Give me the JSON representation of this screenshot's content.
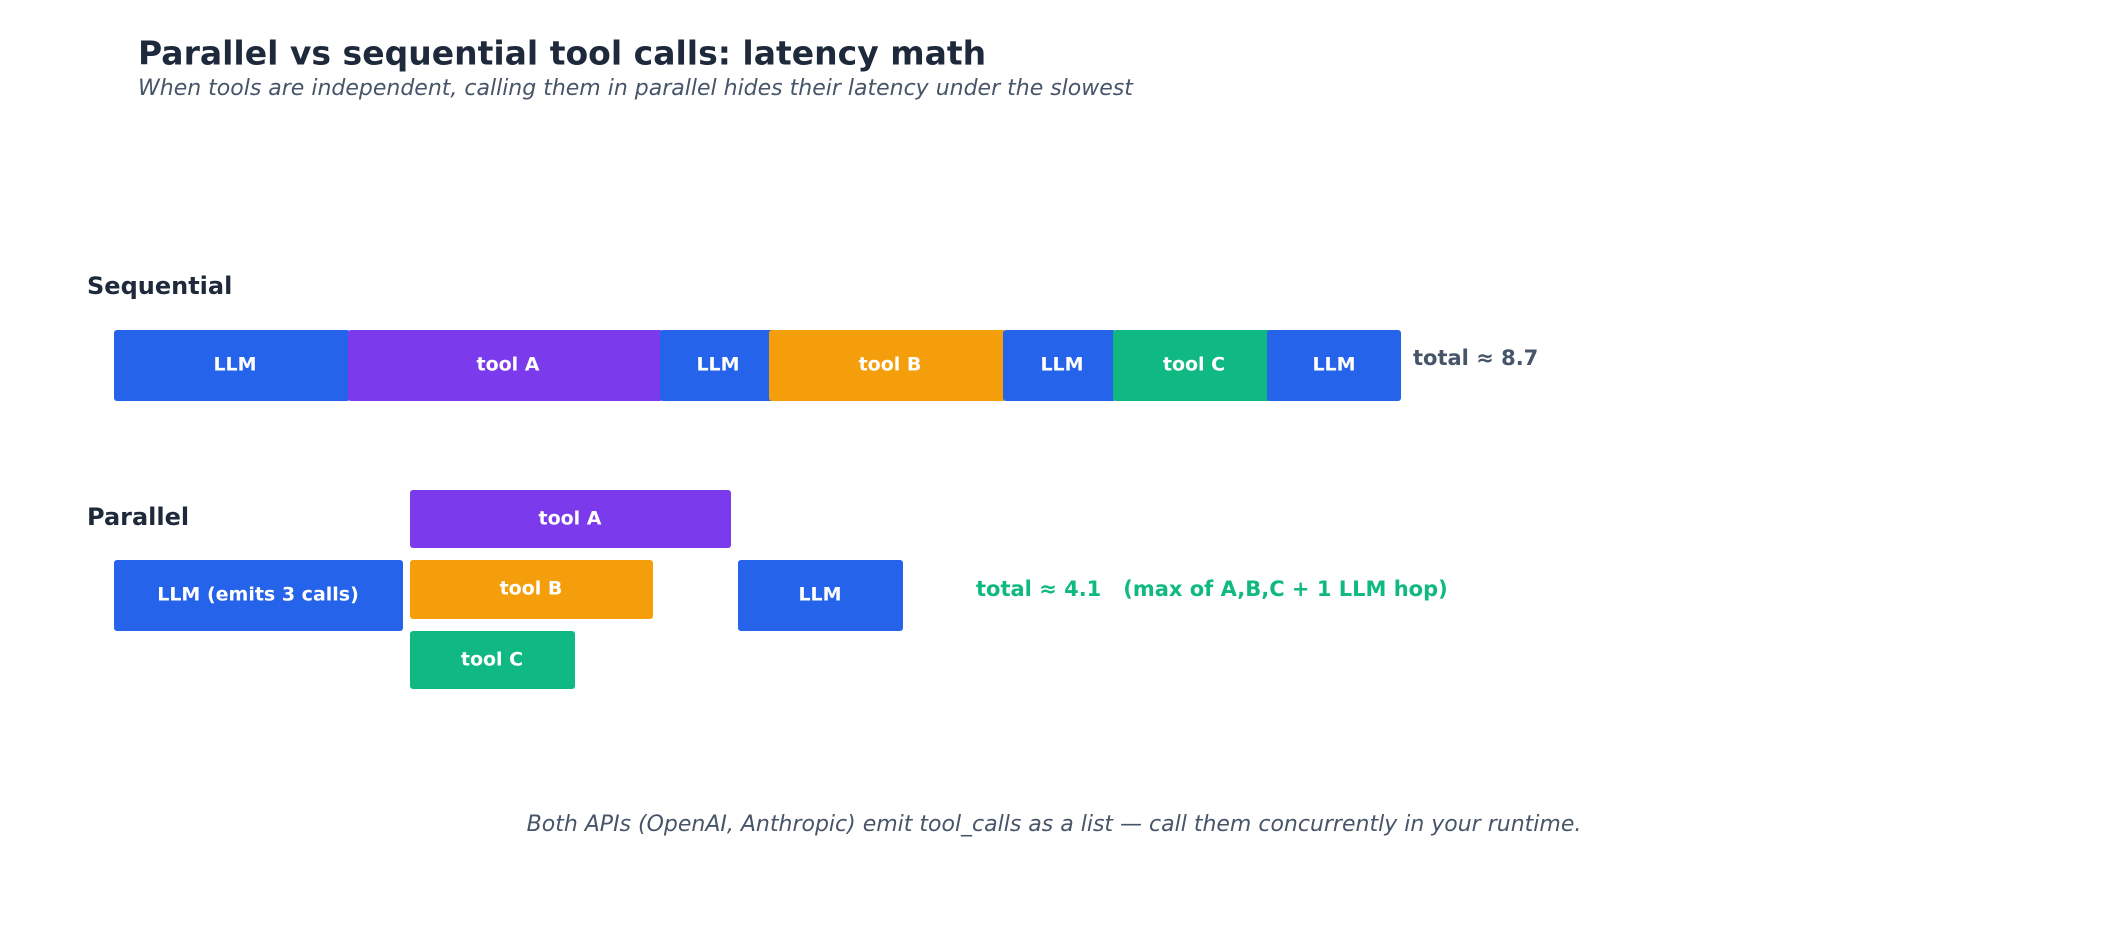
{
  "header": {
    "title": "Parallel vs sequential tool calls: latency math",
    "subtitle": "When tools are independent, calling them in parallel hides their latency under the slowest"
  },
  "sequential": {
    "label": "Sequential",
    "segments": [
      "LLM",
      "tool A",
      "LLM",
      "tool B",
      "LLM",
      "tool C",
      "LLM"
    ],
    "total": "total ≈ 8.7"
  },
  "parallel": {
    "label": "Parallel",
    "segments": [
      "LLM (emits 3 calls)",
      "tool A",
      "tool B",
      "tool C",
      "LLM"
    ],
    "total": "total ≈ 4.1   (max of A,B,C + 1 LLM hop)"
  },
  "footer": "Both APIs (OpenAI, Anthropic) emit tool_calls as a list — call them concurrently in your runtime."
}
